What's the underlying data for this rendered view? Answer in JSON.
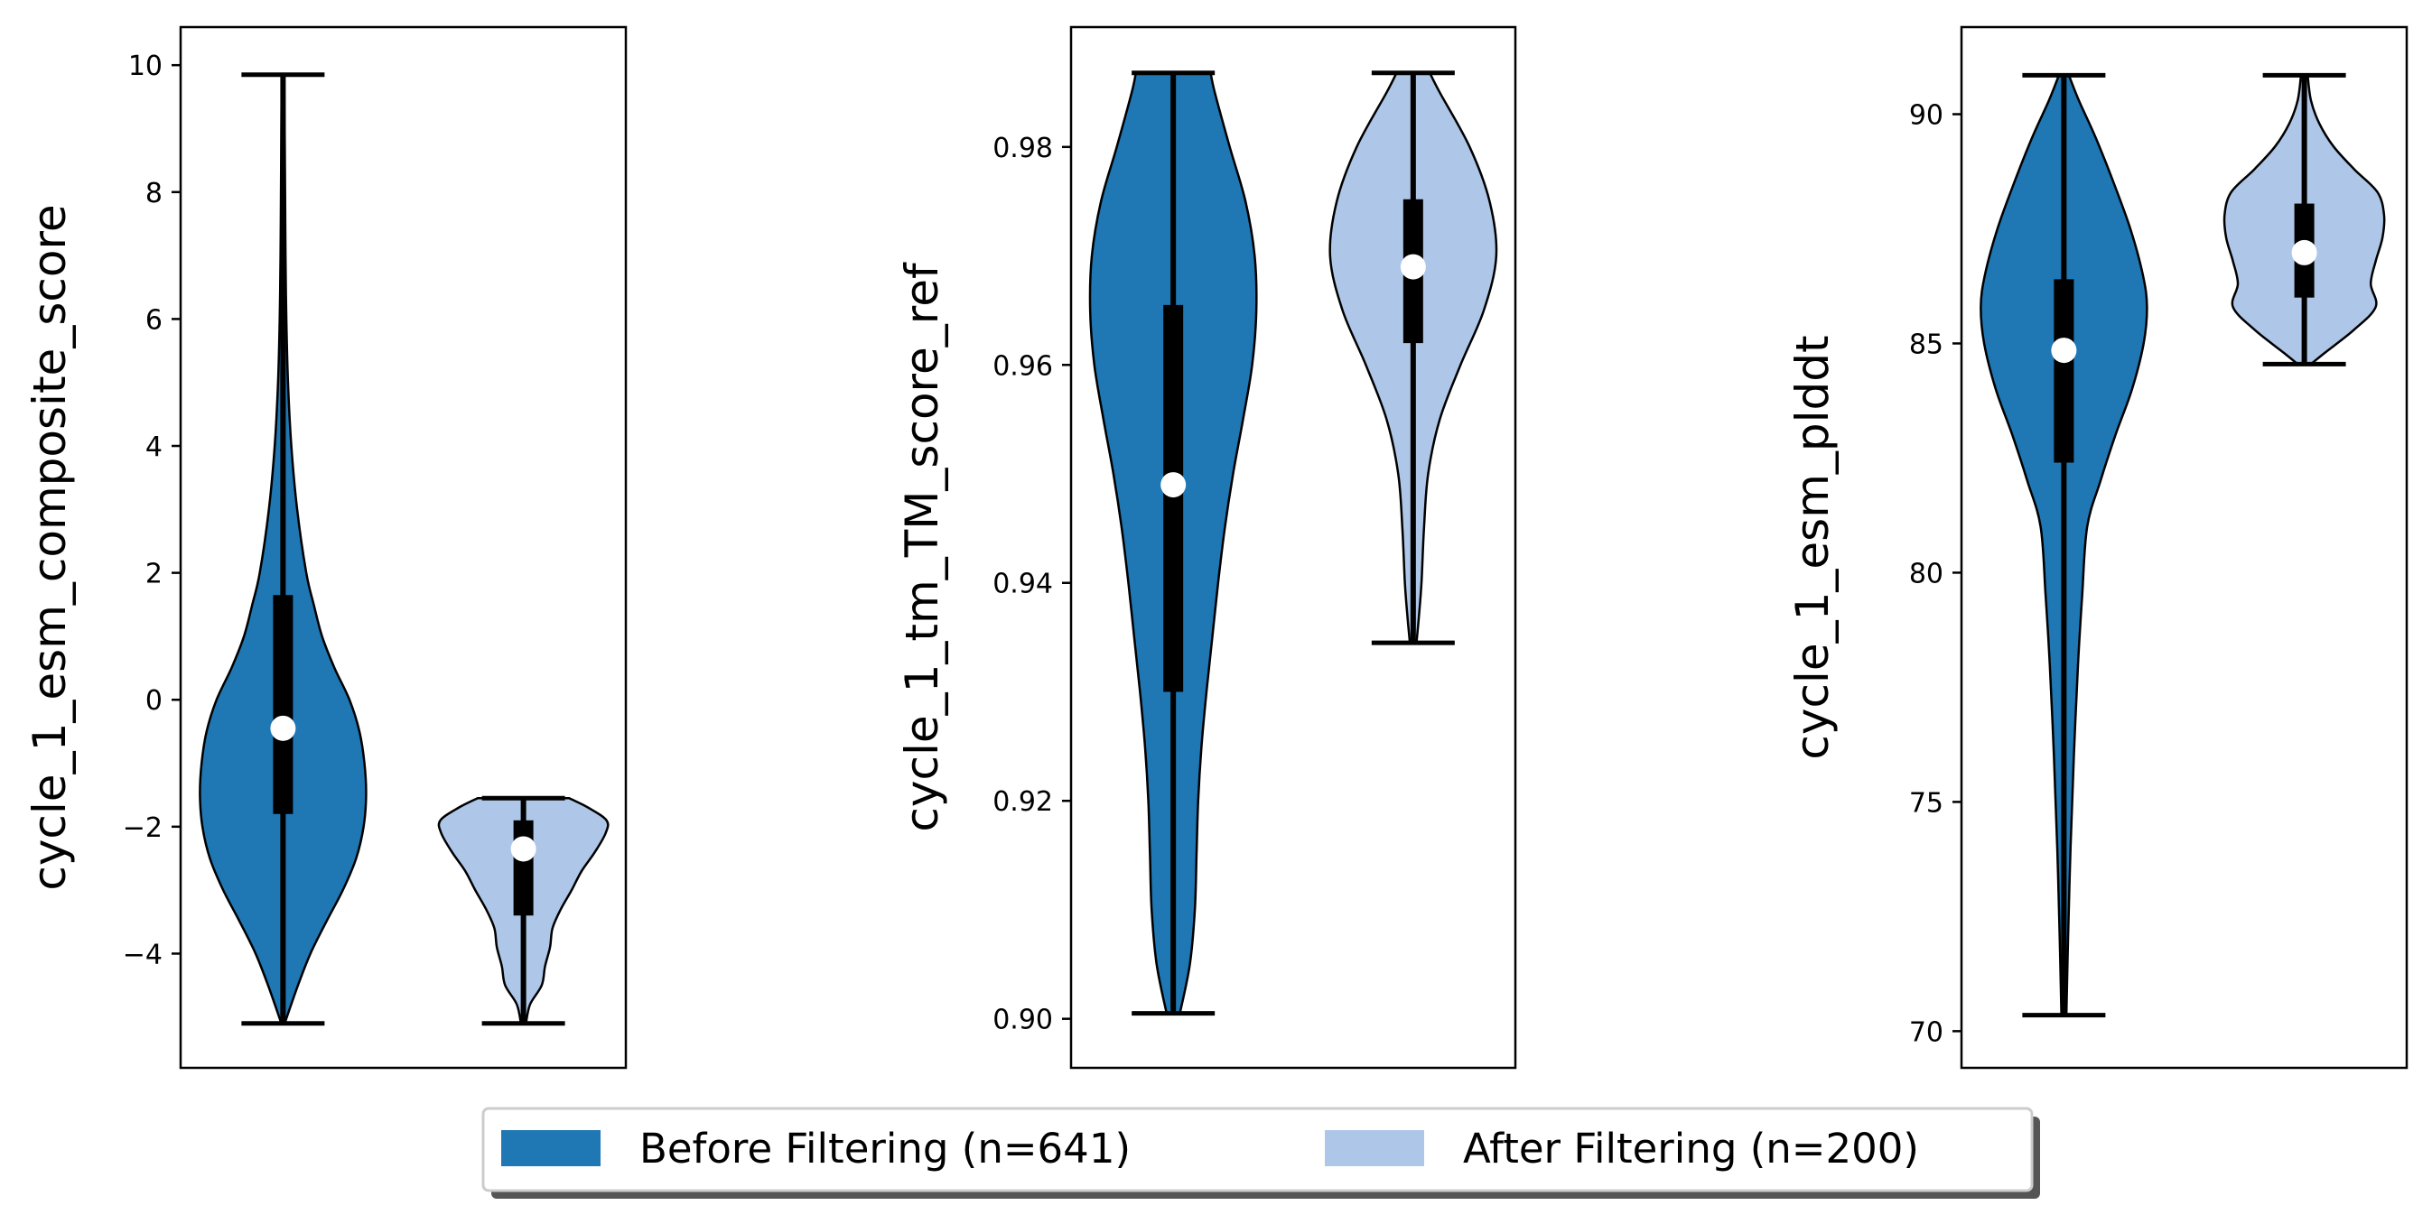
{
  "colors": {
    "before": "#1f77b4",
    "after": "#aec7e8",
    "box": "#000000",
    "median": "#ffffff"
  },
  "legend": {
    "placement": "bottom-center",
    "items": [
      {
        "label": "Before Filtering (n=641)",
        "color": "#1f77b4"
      },
      {
        "label": "After Filtering (n=200)",
        "color": "#aec7e8"
      }
    ]
  },
  "chart_data": [
    {
      "type": "violin",
      "ylabel": "cycle_1_esm_composite_score",
      "ylim": [
        -5.8,
        10.6
      ],
      "yticks": [
        -4,
        -2,
        0,
        2,
        4,
        6,
        8,
        10
      ],
      "ytick_labels": [
        "−4",
        "−2",
        "0",
        "2",
        "4",
        "6",
        "8",
        "10"
      ],
      "grid": false,
      "series": [
        {
          "name": "Before Filtering (n=641)",
          "min": -5.1,
          "max": 9.85,
          "q1": -1.8,
          "median": -0.45,
          "q3": 1.65,
          "density": [
            [
              -5.1,
              0.02
            ],
            [
              -4.5,
              0.18
            ],
            [
              -4.0,
              0.33
            ],
            [
              -3.5,
              0.52
            ],
            [
              -3.0,
              0.72
            ],
            [
              -2.5,
              0.88
            ],
            [
              -2.0,
              0.97
            ],
            [
              -1.5,
              1.0
            ],
            [
              -1.0,
              0.98
            ],
            [
              -0.5,
              0.92
            ],
            [
              0.0,
              0.8
            ],
            [
              0.5,
              0.62
            ],
            [
              1.0,
              0.47
            ],
            [
              1.5,
              0.37
            ],
            [
              2.0,
              0.28
            ],
            [
              3.0,
              0.17
            ],
            [
              4.0,
              0.1
            ],
            [
              5.0,
              0.06
            ],
            [
              6.0,
              0.04
            ],
            [
              7.0,
              0.03
            ],
            [
              8.0,
              0.025
            ],
            [
              9.0,
              0.02
            ],
            [
              9.85,
              0.015
            ]
          ]
        },
        {
          "name": "After Filtering (n=200)",
          "min": -5.1,
          "max": -1.55,
          "q1": -3.4,
          "median": -2.35,
          "q3": -1.9,
          "density": [
            [
              -5.1,
              0.03
            ],
            [
              -4.8,
              0.08
            ],
            [
              -4.5,
              0.22
            ],
            [
              -4.2,
              0.26
            ],
            [
              -3.9,
              0.32
            ],
            [
              -3.6,
              0.35
            ],
            [
              -3.3,
              0.45
            ],
            [
              -3.0,
              0.58
            ],
            [
              -2.7,
              0.7
            ],
            [
              -2.4,
              0.86
            ],
            [
              -2.1,
              0.99
            ],
            [
              -1.9,
              1.0
            ],
            [
              -1.7,
              0.78
            ],
            [
              -1.55,
              0.55
            ]
          ]
        }
      ]
    },
    {
      "type": "violin",
      "ylabel": "cycle_1_tm_TM_score_ref",
      "ylim": [
        0.8955,
        0.991
      ],
      "yticks": [
        0.9,
        0.92,
        0.94,
        0.96,
        0.98
      ],
      "ytick_labels": [
        "0.90",
        "0.92",
        "0.94",
        "0.96",
        "0.98"
      ],
      "grid": false,
      "series": [
        {
          "name": "Before Filtering (n=641)",
          "min": 0.9005,
          "max": 0.9868,
          "q1": 0.93,
          "median": 0.949,
          "q3": 0.9655,
          "density": [
            [
              0.9005,
              0.08
            ],
            [
              0.905,
              0.2
            ],
            [
              0.91,
              0.26
            ],
            [
              0.915,
              0.28
            ],
            [
              0.92,
              0.3
            ],
            [
              0.925,
              0.34
            ],
            [
              0.93,
              0.4
            ],
            [
              0.935,
              0.47
            ],
            [
              0.94,
              0.54
            ],
            [
              0.945,
              0.62
            ],
            [
              0.95,
              0.72
            ],
            [
              0.955,
              0.84
            ],
            [
              0.96,
              0.95
            ],
            [
              0.965,
              1.0
            ],
            [
              0.97,
              0.98
            ],
            [
              0.975,
              0.87
            ],
            [
              0.98,
              0.68
            ],
            [
              0.985,
              0.5
            ],
            [
              0.9868,
              0.45
            ]
          ]
        },
        {
          "name": "After Filtering (n=200)",
          "min": 0.9345,
          "max": 0.9868,
          "q1": 0.962,
          "median": 0.969,
          "q3": 0.9752,
          "density": [
            [
              0.9345,
              0.04
            ],
            [
              0.937,
              0.07
            ],
            [
              0.94,
              0.1
            ],
            [
              0.945,
              0.13
            ],
            [
              0.95,
              0.18
            ],
            [
              0.955,
              0.32
            ],
            [
              0.96,
              0.57
            ],
            [
              0.965,
              0.85
            ],
            [
              0.97,
              1.0
            ],
            [
              0.975,
              0.92
            ],
            [
              0.98,
              0.68
            ],
            [
              0.985,
              0.32
            ],
            [
              0.9868,
              0.2
            ]
          ]
        }
      ]
    },
    {
      "type": "violin",
      "ylabel": "cycle_1_esm_plddt",
      "ylim": [
        69.2,
        91.9
      ],
      "yticks": [
        70,
        75,
        80,
        85,
        90
      ],
      "ytick_labels": [
        "70",
        "75",
        "80",
        "85",
        "90"
      ],
      "grid": false,
      "series": [
        {
          "name": "Before Filtering (n=641)",
          "min": 70.35,
          "max": 90.85,
          "q1": 82.4,
          "median": 84.85,
          "q3": 86.4,
          "density": [
            [
              70.35,
              0.03
            ],
            [
              72.0,
              0.05
            ],
            [
              74.0,
              0.08
            ],
            [
              76.0,
              0.12
            ],
            [
              78.0,
              0.17
            ],
            [
              79.5,
              0.22
            ],
            [
              81.0,
              0.28
            ],
            [
              82.0,
              0.44
            ],
            [
              83.0,
              0.62
            ],
            [
              84.0,
              0.82
            ],
            [
              85.0,
              0.96
            ],
            [
              85.8,
              1.0
            ],
            [
              86.5,
              0.95
            ],
            [
              87.5,
              0.8
            ],
            [
              88.5,
              0.6
            ],
            [
              89.5,
              0.38
            ],
            [
              90.3,
              0.18
            ],
            [
              90.85,
              0.06
            ]
          ]
        },
        {
          "name": "After Filtering (n=200)",
          "min": 84.55,
          "max": 90.85,
          "q1": 86.0,
          "median": 86.98,
          "q3": 88.05,
          "density": [
            [
              84.55,
              0.08
            ],
            [
              84.8,
              0.25
            ],
            [
              85.3,
              0.6
            ],
            [
              85.8,
              0.86
            ],
            [
              86.3,
              0.8
            ],
            [
              86.8,
              0.86
            ],
            [
              87.3,
              0.94
            ],
            [
              87.8,
              0.96
            ],
            [
              88.3,
              0.88
            ],
            [
              88.8,
              0.6
            ],
            [
              89.3,
              0.35
            ],
            [
              89.8,
              0.18
            ],
            [
              90.3,
              0.08
            ],
            [
              90.85,
              0.04
            ]
          ]
        }
      ]
    }
  ]
}
